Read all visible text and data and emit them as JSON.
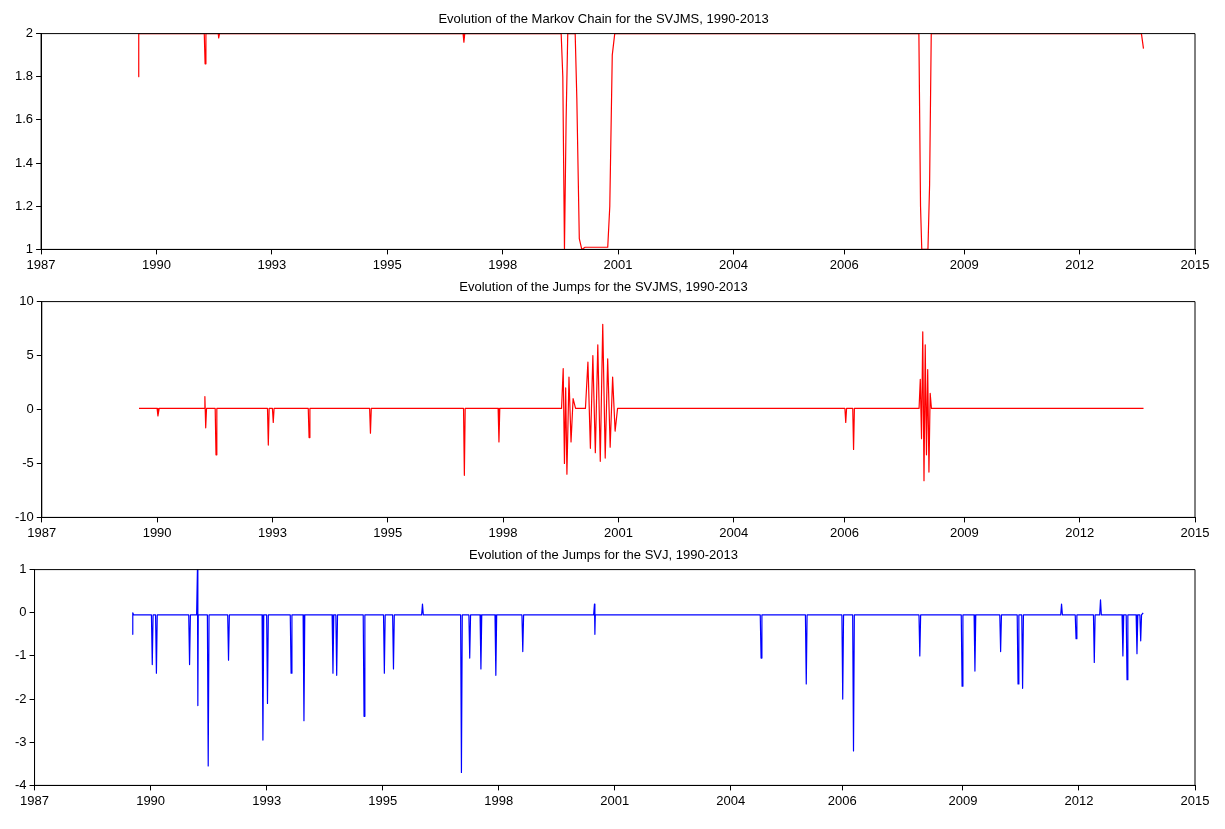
{
  "chart_data": [
    {
      "type": "line",
      "title": "Evolution of the Markov Chain for the SVJMS, 1990-2013",
      "color": "#ff0000",
      "grid": false,
      "legend": false,
      "marker": "none",
      "line_style": "solid",
      "xlim": [
        1987,
        2015
      ],
      "ylim": [
        1,
        2
      ],
      "yticks": [
        1,
        1.2,
        1.4,
        1.6,
        1.8,
        2
      ],
      "xticks": [
        {
          "value": 1987,
          "label": "1987"
        },
        {
          "value": 1989.8,
          "label": "1990"
        },
        {
          "value": 1992.6,
          "label": "1993"
        },
        {
          "value": 1995.4,
          "label": "1995"
        },
        {
          "value": 1998.2,
          "label": "1998"
        },
        {
          "value": 2001,
          "label": "2001"
        },
        {
          "value": 2003.8,
          "label": "2004"
        },
        {
          "value": 2006.49,
          "label": "2006"
        },
        {
          "value": 2009.4,
          "label": "2009"
        },
        {
          "value": 2012.2,
          "label": "2012"
        },
        {
          "value": 2015,
          "label": "2015"
        }
      ],
      "x": [
        1989.36,
        1989.37,
        1989.39,
        1990.96,
        1990.98,
        1991.0,
        1991.3,
        1991.31,
        1991.33,
        1997.24,
        1997.26,
        1997.28,
        1999.62,
        1999.66,
        1999.7,
        1999.74,
        1999.78,
        1999.84,
        1999.96,
        2000.0,
        2000.06,
        2000.12,
        2000.2,
        2000.5,
        2000.75,
        2000.8,
        2000.86,
        2000.92,
        2008.3,
        2008.34,
        2008.37,
        2008.52,
        2008.56,
        2008.6,
        2013.7,
        2013.75
      ],
      "values": [
        1.8,
        2,
        2,
        2,
        1.86,
        2,
        2,
        1.98,
        2,
        2,
        1.96,
        2,
        2,
        1.8,
        1,
        1.6,
        2,
        2,
        2,
        1.7,
        1.05,
        1,
        1.01,
        1.01,
        1.01,
        1.2,
        1.9,
        2,
        2,
        1.2,
        1,
        1,
        1.3,
        2,
        2,
        1.93
      ]
    },
    {
      "type": "line",
      "title": "Evolution of the Jumps for the SVJMS, 1990-2013",
      "color": "#ff0000",
      "grid": false,
      "legend": false,
      "marker": "none",
      "line_style": "solid",
      "xlim": [
        1987,
        2015
      ],
      "ylim": [
        -10,
        10
      ],
      "yticks": [
        -10,
        -5,
        0,
        5,
        10
      ],
      "xticks": [
        {
          "value": 1987,
          "label": "1987"
        },
        {
          "value": 1989.8,
          "label": "1990"
        },
        {
          "value": 1992.6,
          "label": "1993"
        },
        {
          "value": 1995.4,
          "label": "1995"
        },
        {
          "value": 1998.2,
          "label": "1998"
        },
        {
          "value": 2001,
          "label": "2001"
        },
        {
          "value": 2003.8,
          "label": "2004"
        },
        {
          "value": 2006.49,
          "label": "2006"
        },
        {
          "value": 2009.4,
          "label": "2009"
        },
        {
          "value": 2012.2,
          "label": "2012"
        },
        {
          "value": 2015,
          "label": "2015"
        }
      ],
      "x": [
        1989.36,
        1989.8,
        1989.82,
        1989.85,
        1990.95,
        1990.96,
        1990.98,
        1991.0,
        1991.21,
        1991.23,
        1991.25,
        1992.48,
        1992.5,
        1992.52,
        1992.6,
        1992.62,
        1992.64,
        1993.47,
        1993.49,
        1993.51,
        1994.96,
        1994.98,
        1995.0,
        1997.24,
        1997.26,
        1997.28,
        1998.08,
        1998.1,
        1998.12,
        1999.62,
        1999.66,
        1999.69,
        1999.72,
        1999.75,
        1999.8,
        1999.85,
        1999.9,
        1999.96,
        2000.2,
        2000.26,
        2000.32,
        2000.38,
        2000.44,
        2000.5,
        2000.56,
        2000.62,
        2000.68,
        2000.74,
        2000.8,
        2000.86,
        2000.92,
        2000.98,
        2006.5,
        2006.52,
        2006.54,
        2006.69,
        2006.71,
        2006.73,
        2008.3,
        2008.33,
        2008.36,
        2008.39,
        2008.42,
        2008.45,
        2008.48,
        2008.51,
        2008.54,
        2008.57,
        2008.6,
        2013.75
      ],
      "values": [
        0.1,
        0.1,
        -0.6,
        0.1,
        0.1,
        1.2,
        -1.7,
        0.1,
        0.1,
        -4.2,
        0.1,
        0.1,
        -3.3,
        0.1,
        0.1,
        -1.2,
        0.1,
        0.1,
        -2.6,
        0.1,
        0.1,
        -2.2,
        0.1,
        0.1,
        -6.1,
        0.1,
        0.1,
        -3,
        0.1,
        0.1,
        3.8,
        -5,
        2,
        -6,
        3,
        -3,
        1,
        0.1,
        0.1,
        4.4,
        -3.6,
        5,
        -4,
        6,
        -4.8,
        7.9,
        -4.5,
        4.7,
        -3.5,
        3,
        -2,
        0.1,
        0.1,
        -1.2,
        0.1,
        0.1,
        -3.7,
        0.1,
        0.1,
        2.8,
        -2.7,
        7.2,
        -6.6,
        6,
        -4.2,
        3.7,
        -5.8,
        1.5,
        0.1,
        0.1
      ]
    },
    {
      "type": "line",
      "title": "Evolution of the Jumps for the SVJ, 1990-2013",
      "color": "#0000ff",
      "grid": false,
      "legend": false,
      "marker": "none",
      "line_style": "solid",
      "xlim": [
        1987,
        2015
      ],
      "ylim": [
        -4,
        1
      ],
      "yticks": [
        -4,
        -3,
        -2,
        -1,
        0,
        1
      ],
      "xticks": [
        {
          "value": 1987,
          "label": "1987"
        },
        {
          "value": 1989.8,
          "label": "1990"
        },
        {
          "value": 1992.6,
          "label": "1993"
        },
        {
          "value": 1995.4,
          "label": "1995"
        },
        {
          "value": 1998.2,
          "label": "1998"
        },
        {
          "value": 2001,
          "label": "2001"
        },
        {
          "value": 2003.8,
          "label": "2004"
        },
        {
          "value": 2006.49,
          "label": "2006"
        },
        {
          "value": 2009.4,
          "label": "2009"
        },
        {
          "value": 2012.2,
          "label": "2012"
        },
        {
          "value": 2015,
          "label": "2015"
        }
      ],
      "x": [
        1989.36,
        1989.37,
        1989.39,
        1989.82,
        1989.84,
        1989.86,
        1989.92,
        1989.94,
        1989.96,
        1990.72,
        1990.74,
        1990.76,
        1990.91,
        1990.93,
        1990.94,
        1990.95,
        1991.17,
        1991.19,
        1991.21,
        1991.66,
        1991.68,
        1991.7,
        1992.49,
        1992.51,
        1992.53,
        1992.6,
        1992.62,
        1992.64,
        1993.17,
        1993.19,
        1993.21,
        1993.48,
        1993.5,
        1993.52,
        1994.18,
        1994.2,
        1994.22,
        1994.27,
        1994.29,
        1994.31,
        1994.93,
        1994.95,
        1994.97,
        1995.42,
        1995.44,
        1995.46,
        1995.64,
        1995.66,
        1995.68,
        1996.34,
        1996.36,
        1996.38,
        1997.28,
        1997.3,
        1997.32,
        1997.48,
        1997.5,
        1997.52,
        1997.75,
        1997.77,
        1997.79,
        1998.11,
        1998.13,
        1998.15,
        1998.76,
        1998.78,
        1998.8,
        2000.49,
        2000.51,
        2000.52,
        2000.53,
        2004.51,
        2004.53,
        2004.55,
        2005.6,
        2005.62,
        2005.64,
        2006.48,
        2006.5,
        2006.52,
        2006.74,
        2006.76,
        2006.78,
        2008.34,
        2008.36,
        2008.38,
        2009.36,
        2009.38,
        2009.4,
        2009.67,
        2009.69,
        2009.71,
        2010.29,
        2010.31,
        2010.33,
        2010.71,
        2010.73,
        2010.75,
        2010.82,
        2010.84,
        2010.86,
        2011.76,
        2011.78,
        2011.8,
        2012.11,
        2012.13,
        2012.15,
        2012.55,
        2012.57,
        2012.59,
        2012.7,
        2012.72,
        2012.74,
        2013.24,
        2013.26,
        2013.28,
        2013.34,
        2013.36,
        2013.38,
        2013.58,
        2013.6,
        2013.62,
        2013.67,
        2013.69,
        2013.71,
        2013.75
      ],
      "values": [
        -0.5,
        0,
        -0.05,
        -0.05,
        -1.2,
        -0.05,
        -0.05,
        -1.4,
        -0.05,
        -0.05,
        -1.2,
        -0.05,
        -0.05,
        1,
        -2.15,
        -0.05,
        -0.05,
        -3.55,
        -0.05,
        -0.05,
        -1.1,
        -0.05,
        -0.05,
        -2.95,
        -0.05,
        -0.05,
        -2.1,
        -0.05,
        -0.05,
        -1.4,
        -0.05,
        -0.05,
        -2.5,
        -0.05,
        -0.05,
        -1.4,
        -0.05,
        -0.05,
        -1.45,
        -0.05,
        -0.05,
        -2.4,
        -0.05,
        -0.05,
        -1.4,
        -0.05,
        -0.05,
        -1.3,
        -0.05,
        -0.05,
        0.2,
        -0.05,
        -0.05,
        -3.7,
        -0.05,
        -0.05,
        -1.05,
        -0.05,
        -0.05,
        -1.3,
        -0.05,
        -0.05,
        -1.45,
        -0.05,
        -0.05,
        -0.9,
        -0.05,
        -0.05,
        0.2,
        -0.5,
        -0.05,
        -0.05,
        -1.05,
        -0.05,
        -0.05,
        -1.65,
        -0.05,
        -0.05,
        -2,
        -0.05,
        -0.05,
        -3.2,
        -0.05,
        -0.05,
        -1,
        -0.05,
        -0.05,
        -1.7,
        -0.05,
        -0.05,
        -1.35,
        -0.05,
        -0.05,
        -0.9,
        -0.05,
        -0.05,
        -1.65,
        -0.05,
        -0.05,
        -1.75,
        -0.05,
        -0.05,
        0.2,
        -0.05,
        -0.05,
        -0.6,
        -0.05,
        -0.05,
        -1.15,
        -0.05,
        -0.05,
        0.3,
        -0.05,
        -0.05,
        -1,
        -0.05,
        -0.05,
        -1.55,
        -0.05,
        -0.05,
        -0.95,
        -0.05,
        -0.05,
        -0.65,
        -0.05,
        0
      ]
    }
  ]
}
